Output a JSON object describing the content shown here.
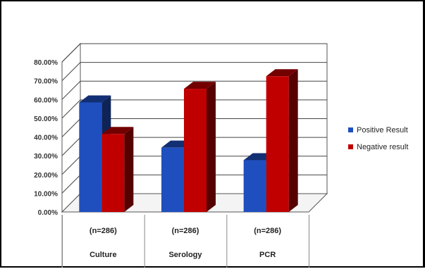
{
  "chart_data": {
    "type": "bar",
    "style": "3d-clustered-column",
    "categories": [
      "Culture",
      "Serology",
      "PCR"
    ],
    "category_counts": [
      "(n=286)",
      "(n=286)",
      "(n=286)"
    ],
    "series": [
      {
        "name": "Positive Result",
        "color": "#1f4fbf",
        "values": [
          58.4,
          34.3,
          27.6
        ]
      },
      {
        "name": "Negative result",
        "color": "#c00000",
        "values": [
          41.6,
          65.7,
          72.4
        ]
      }
    ],
    "y_ticks": [
      "0.00%",
      "10.00%",
      "20.00%",
      "30.00%",
      "40.00%",
      "50.00%",
      "60.00%",
      "70.00%",
      "80.00%"
    ],
    "ylim": [
      0,
      80
    ],
    "grid": true,
    "legend_position": "right",
    "title": "",
    "xlabel": "",
    "ylabel": ""
  }
}
